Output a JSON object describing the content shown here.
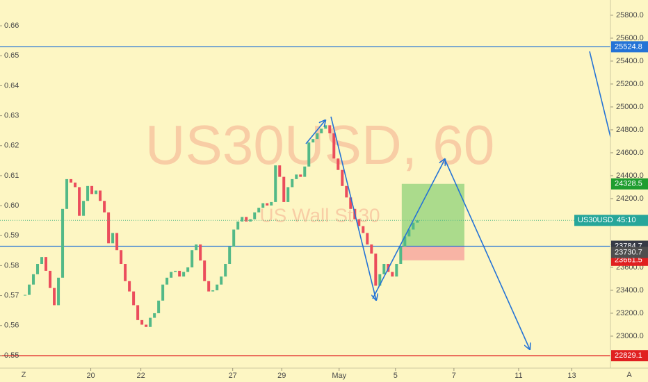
{
  "chart_data": {
    "type": "candlestick",
    "watermark_symbol": "US30USD, 60",
    "watermark_description": "US Wall St 30",
    "x": [
      24,
      28,
      32,
      36,
      40,
      44,
      48,
      52,
      56,
      60,
      64,
      68,
      72,
      76,
      80,
      84,
      88,
      92,
      96,
      100,
      104,
      108,
      112,
      116,
      120,
      124,
      128,
      132,
      136,
      140,
      144,
      148,
      152,
      156,
      160,
      164,
      168,
      172,
      176,
      180,
      184,
      188,
      192,
      196,
      200,
      204,
      208,
      212,
      216,
      220,
      224,
      228,
      232,
      236,
      240,
      244,
      248,
      252,
      256,
      260,
      264,
      268,
      272,
      276,
      280,
      284,
      288,
      292,
      296,
      300,
      304,
      308,
      312,
      316,
      320,
      324,
      328,
      332,
      336,
      340,
      344,
      348,
      352,
      356,
      360,
      364,
      368,
      372,
      376,
      380,
      384,
      388,
      392,
      396,
      400
    ],
    "close": [
      23360,
      23450,
      23540,
      23630,
      23690,
      23570,
      23420,
      23270,
      23510,
      24110,
      24370,
      24340,
      24300,
      24050,
      24180,
      24310,
      24240,
      24270,
      24180,
      24080,
      23810,
      23900,
      23750,
      23630,
      23480,
      23390,
      23270,
      23140,
      23100,
      23080,
      23160,
      23200,
      23310,
      23450,
      23510,
      23560,
      23570,
      23520,
      23560,
      23600,
      23750,
      23800,
      23660,
      23480,
      23390,
      23400,
      23450,
      23520,
      23630,
      23780,
      23930,
      24000,
      24040,
      24000,
      24020,
      24080,
      24120,
      24160,
      24140,
      24170,
      24490,
      24390,
      24170,
      24300,
      24370,
      24410,
      24390,
      24480,
      24690,
      24720,
      24770,
      24810,
      24840,
      24770,
      24550,
      24450,
      24310,
      24210,
      24110,
      24020,
      23960,
      23900,
      23800,
      23720,
      23440,
      23540,
      23630,
      23560,
      23520,
      23630,
      23780,
      23870,
      23930,
      23990,
      24010
    ],
    "up_color": "#53b987",
    "down_color": "#eb4d5c",
    "xlim": [
      0,
      585
    ],
    "xticks": [
      {
        "value": 87,
        "label": "20"
      },
      {
        "value": 135,
        "label": "22"
      },
      {
        "value": 223,
        "label": "27"
      },
      {
        "value": 270,
        "label": "29"
      },
      {
        "value": 325,
        "label": "May"
      },
      {
        "value": 379,
        "label": "5"
      },
      {
        "value": 435,
        "label": "7"
      },
      {
        "value": 497,
        "label": "11"
      },
      {
        "value": 548,
        "label": "13"
      }
    ],
    "ylim": [
      22721,
      25933
    ],
    "yticks": [
      {
        "value": 23000,
        "label": "23000.0"
      },
      {
        "value": 23200,
        "label": "23200.0"
      },
      {
        "value": 23400,
        "label": "23400.0"
      },
      {
        "value": 23600,
        "label": "23600.0"
      },
      {
        "value": 23800,
        "label": "23800.0"
      },
      {
        "value": 24000,
        "label": "24000.0"
      },
      {
        "value": 24200,
        "label": "24200.0"
      },
      {
        "value": 24400,
        "label": "24400.0"
      },
      {
        "value": 24600,
        "label": "24600.0"
      },
      {
        "value": 24800,
        "label": "24800.0"
      },
      {
        "value": 25000,
        "label": "25000.0"
      },
      {
        "value": 25200,
        "label": "25200.0"
      },
      {
        "value": 25400,
        "label": "25400.0"
      },
      {
        "value": 25600,
        "label": "25600.0"
      },
      {
        "value": 25800,
        "label": "25800.0"
      }
    ],
    "y2lim": [
      0.5458,
      0.6686
    ],
    "y2ticks": [
      0.55,
      0.56,
      0.57,
      0.58,
      0.59,
      {
        "value": 0.6,
        "label": "0.60"
      },
      0.61,
      0.62,
      0.63,
      0.64,
      0.65,
      0.66
    ],
    "hlines": [
      {
        "value": 25524.8,
        "color": "#2473d6"
      },
      {
        "value": 23784.7,
        "color": "#2473d6"
      },
      {
        "value": 22829.1,
        "color": "#e02020"
      }
    ],
    "position": {
      "x": [
        385,
        445
      ],
      "target": 24328.5,
      "entry": 23784.7,
      "stop": 23661.5,
      "profit_color": "#8fd17a",
      "loss_color": "#f7a8a0"
    },
    "price_labels": [
      {
        "value": 25524.8,
        "color": "#2473d6"
      },
      {
        "value": 24328.5,
        "color": "#1f9d30"
      },
      {
        "value": 23784.7,
        "color": "#363a45"
      },
      {
        "value": 23661.5,
        "color": "#e02020"
      },
      {
        "value": 23730.7,
        "color": "#4e4e4e"
      },
      {
        "value": 22829.1,
        "color": "#e02020"
      }
    ],
    "symbol_tag": {
      "label": "US30USD",
      "countdown": "45:10",
      "color": "#26a69a"
    },
    "corner_left": "Z",
    "corner_right": "A"
  }
}
